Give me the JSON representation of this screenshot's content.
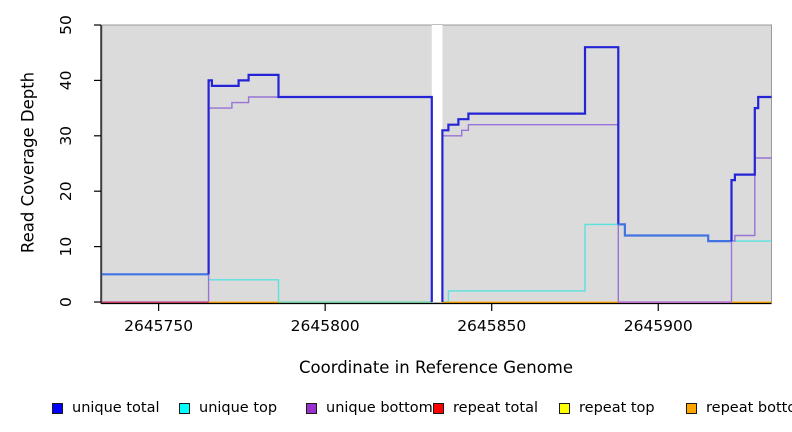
{
  "chart_data": {
    "type": "line",
    "subtype": "step-coverage-plot",
    "title": "",
    "x_axis": {
      "label": "Coordinate in Reference Genome",
      "ticks": [
        2645750,
        2645800,
        2645850,
        2645900
      ]
    },
    "y_axis": {
      "label": "Read Coverage Depth",
      "ticks": [
        0,
        10,
        20,
        30,
        40,
        50
      ]
    },
    "x_range": [
      2645733,
      2645934
    ],
    "y_range": [
      0,
      50
    ],
    "grid": "off",
    "panel_background": "#DBDBDB",
    "gap_region": [
      2645832,
      2645835.2
    ],
    "series": [
      {
        "name": "unique total",
        "color": "#2424D6",
        "step_points": [
          [
            2645733,
            5
          ],
          [
            2645765,
            40
          ],
          [
            2645766,
            39
          ],
          [
            2645774,
            40
          ],
          [
            2645777,
            41
          ],
          [
            2645786,
            37
          ],
          [
            2645832,
            null
          ],
          [
            2645835,
            31
          ],
          [
            2645837,
            32
          ],
          [
            2645840,
            33
          ],
          [
            2645843,
            34
          ],
          [
            2645878,
            46
          ],
          [
            2645888,
            14
          ],
          [
            2645890,
            12
          ],
          [
            2645915,
            11
          ],
          [
            2645922,
            22
          ],
          [
            2645923,
            23
          ],
          [
            2645929,
            35
          ],
          [
            2645930,
            37
          ]
        ]
      },
      {
        "name": "unique top",
        "color": "#58E3DF",
        "step_points": [
          [
            2645733,
            5
          ],
          [
            2645765,
            4
          ],
          [
            2645786,
            0
          ],
          [
            2645832,
            null
          ],
          [
            2645835,
            0
          ],
          [
            2645837,
            2
          ],
          [
            2645878,
            14
          ],
          [
            2645890,
            12
          ],
          [
            2645915,
            11
          ]
        ]
      },
      {
        "name": "unique bottom",
        "color": "#9873D8",
        "step_points": [
          [
            2645733,
            0
          ],
          [
            2645765,
            35
          ],
          [
            2645772,
            36
          ],
          [
            2645777,
            37
          ],
          [
            2645832,
            null
          ],
          [
            2645835,
            30
          ],
          [
            2645841,
            31
          ],
          [
            2645843,
            32
          ],
          [
            2645888,
            0
          ],
          [
            2645922,
            11
          ],
          [
            2645923,
            12
          ],
          [
            2645929,
            26
          ]
        ]
      },
      {
        "name": "repeat total",
        "color": "#E14A64",
        "step_points": [
          [
            2645733,
            0
          ],
          [
            2645832,
            null
          ],
          [
            2645835,
            0
          ]
        ]
      },
      {
        "name": "repeat top",
        "color": "#FFFF00",
        "step_points": [
          [
            2645733,
            0
          ],
          [
            2645832,
            null
          ],
          [
            2645835,
            0
          ]
        ]
      },
      {
        "name": "repeat bottom",
        "color": "#FFA500",
        "step_points": [
          [
            2645733,
            0
          ],
          [
            2645832,
            null
          ],
          [
            2645835,
            0
          ]
        ]
      }
    ],
    "render_polylines": [
      {
        "name": "unique-top-line-left",
        "color": "#58E3DF",
        "width": 1.4,
        "points": [
          [
            2645733,
            5
          ],
          [
            2645765,
            5
          ],
          [
            2645765,
            4
          ],
          [
            2645786,
            4
          ],
          [
            2645786,
            0
          ],
          [
            2645832,
            0
          ]
        ]
      },
      {
        "name": "unique-top-line-right",
        "color": "#58E3DF",
        "width": 1.4,
        "points": [
          [
            2645835.2,
            0
          ],
          [
            2645837,
            0
          ],
          [
            2645837,
            2
          ],
          [
            2645878,
            2
          ],
          [
            2645878,
            14
          ],
          [
            2645890,
            14
          ],
          [
            2645890,
            12
          ],
          [
            2645915,
            12
          ],
          [
            2645915,
            11
          ],
          [
            2645934,
            11
          ]
        ]
      },
      {
        "name": "unique-bottom-line-left",
        "color": "#9873D8",
        "width": 1.4,
        "points": [
          [
            2645733,
            0
          ],
          [
            2645765,
            0
          ],
          [
            2645765,
            35
          ],
          [
            2645772,
            35
          ],
          [
            2645772,
            36
          ],
          [
            2645777,
            36
          ],
          [
            2645777,
            37
          ],
          [
            2645832,
            37
          ],
          [
            2645832,
            0
          ]
        ]
      },
      {
        "name": "unique-bottom-line-right",
        "color": "#9873D8",
        "width": 1.4,
        "points": [
          [
            2645835.2,
            0
          ],
          [
            2645835.2,
            30
          ],
          [
            2645841,
            30
          ],
          [
            2645841,
            31
          ],
          [
            2645843,
            31
          ],
          [
            2645843,
            32
          ],
          [
            2645888,
            32
          ],
          [
            2645888,
            0
          ],
          [
            2645922,
            0
          ],
          [
            2645922,
            11
          ],
          [
            2645923,
            11
          ],
          [
            2645923,
            12
          ],
          [
            2645929,
            12
          ],
          [
            2645929,
            26
          ],
          [
            2645934,
            26
          ]
        ]
      }
    ],
    "zero_line_segments": [
      {
        "name": "repeat-total-zero",
        "color": "#E14A64",
        "from": 2645733,
        "to": 2645765
      },
      {
        "name": "repeat-bottom-zero",
        "color": "#FFA500",
        "from": 2645765,
        "to": 2645786
      },
      {
        "name": "mixed-zero-green",
        "color": "#8FD9A2",
        "from": 2645786,
        "to": 2645832
      },
      {
        "name": "repeat-bottom-zero",
        "color": "#FFA500",
        "from": 2645835.2,
        "to": 2645888
      },
      {
        "name": "unique-bottom-zero",
        "color": "#D77FD7",
        "from": 2645888,
        "to": 2645922
      },
      {
        "name": "repeat-bottom-zero",
        "color": "#FFA500",
        "from": 2645922,
        "to": 2645934
      }
    ],
    "total_line_render": [
      {
        "name": "unique-total-line-left-overlap",
        "color": "#4273E3",
        "width": 2.2,
        "points": [
          [
            2645733,
            5
          ],
          [
            2645765,
            5
          ]
        ]
      },
      {
        "name": "unique-total-line-left",
        "color": "#2424D6",
        "width": 2.2,
        "points": [
          [
            2645765,
            5
          ],
          [
            2645765,
            40
          ],
          [
            2645766,
            40
          ],
          [
            2645766,
            39
          ],
          [
            2645774,
            39
          ],
          [
            2645774,
            40
          ],
          [
            2645777,
            40
          ],
          [
            2645777,
            41
          ],
          [
            2645786,
            41
          ],
          [
            2645786,
            37
          ],
          [
            2645832,
            37
          ],
          [
            2645832,
            0
          ]
        ]
      },
      {
        "name": "unique-total-line-right-a",
        "color": "#2424D6",
        "width": 2.2,
        "points": [
          [
            2645835.2,
            0
          ],
          [
            2645835.2,
            31
          ],
          [
            2645837,
            31
          ],
          [
            2645837,
            32
          ],
          [
            2645840,
            32
          ],
          [
            2645840,
            33
          ],
          [
            2645843,
            33
          ],
          [
            2645843,
            34
          ],
          [
            2645878,
            34
          ],
          [
            2645878,
            46
          ],
          [
            2645888,
            46
          ],
          [
            2645888,
            14
          ]
        ]
      },
      {
        "name": "unique-total-line-right-overlap",
        "color": "#4273E3",
        "width": 2.2,
        "points": [
          [
            2645888,
            14
          ],
          [
            2645890,
            14
          ],
          [
            2645890,
            12
          ],
          [
            2645915,
            12
          ],
          [
            2645915,
            11
          ],
          [
            2645922,
            11
          ]
        ]
      },
      {
        "name": "unique-total-line-right-b",
        "color": "#2424D6",
        "width": 2.2,
        "points": [
          [
            2645922,
            11
          ],
          [
            2645922,
            22
          ],
          [
            2645923,
            22
          ],
          [
            2645923,
            23
          ],
          [
            2645929,
            23
          ],
          [
            2645929,
            35
          ],
          [
            2645930,
            35
          ],
          [
            2645930,
            37
          ],
          [
            2645934,
            37
          ]
        ]
      }
    ]
  },
  "legend": {
    "items": [
      {
        "label": "unique total",
        "color": "#0000FF"
      },
      {
        "label": "unique top",
        "color": "#00FFFF"
      },
      {
        "label": "unique bottom",
        "color": "#9932CC"
      },
      {
        "label": "repeat total",
        "color": "#FF0000"
      },
      {
        "label": "repeat top",
        "color": "#FFFF00"
      },
      {
        "label": "repeat bottom",
        "color": "#FFA500"
      }
    ]
  }
}
